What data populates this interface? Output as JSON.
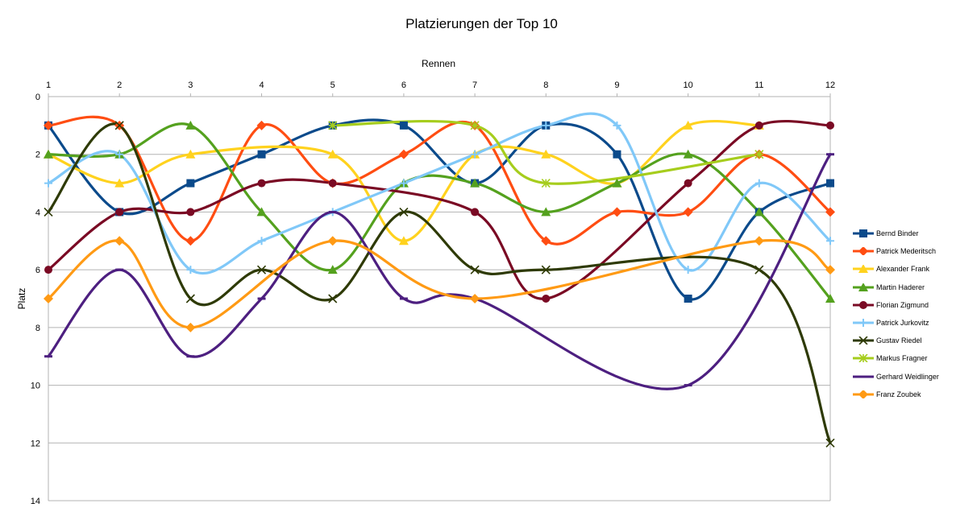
{
  "chart_data": {
    "type": "line",
    "title": "Platzierungen der Top 10",
    "xlabel": "Rennen",
    "ylabel": "Platz",
    "x": [
      1,
      2,
      3,
      4,
      5,
      6,
      7,
      8,
      9,
      10,
      11,
      12
    ],
    "x_ticks": [
      "1",
      "2",
      "3",
      "4",
      "5",
      "6",
      "7",
      "8",
      "9",
      "10",
      "11",
      "12"
    ],
    "y_ticks": [
      "0",
      "2",
      "4",
      "6",
      "8",
      "10",
      "12",
      "14"
    ],
    "ylim": [
      0,
      14
    ],
    "y_reversed": true,
    "x_axis_position": "top",
    "grid": true,
    "smoothed": true,
    "legend_position": "right",
    "series": [
      {
        "name": "Bernd Binder",
        "color": "#0b4a8b",
        "marker": "square",
        "values": [
          1,
          4,
          3,
          2,
          1,
          1,
          3,
          1,
          2,
          7,
          4,
          3
        ]
      },
      {
        "name": "Patrick Mederitsch",
        "color": "#ff4d12",
        "marker": "diamond",
        "values": [
          1,
          1,
          5,
          1,
          3,
          2,
          1,
          5,
          4,
          4,
          2,
          4
        ]
      },
      {
        "name": "Alexander Frank",
        "color": "#ffd21e",
        "marker": "triangle",
        "values": [
          2,
          3,
          2,
          null,
          2,
          5,
          2,
          2,
          3,
          1,
          1,
          null
        ]
      },
      {
        "name": "Martin Haderer",
        "color": "#54a11e",
        "marker": "triangle",
        "values": [
          2,
          2,
          1,
          4,
          6,
          3,
          3,
          4,
          3,
          2,
          4,
          7
        ]
      },
      {
        "name": "Florian Zigmund",
        "color": "#7a0a24",
        "marker": "circle",
        "values": [
          6,
          4,
          4,
          3,
          3,
          null,
          4,
          7,
          null,
          3,
          1,
          1
        ]
      },
      {
        "name": "Patrick Jurkovitz",
        "color": "#80c8f8",
        "marker": "plus",
        "values": [
          3,
          2,
          6,
          5,
          4,
          3,
          2,
          1,
          1,
          6,
          3,
          5
        ]
      },
      {
        "name": "Gustav Riedel",
        "color": "#2e3a06",
        "marker": "x",
        "values": [
          4,
          1,
          7,
          6,
          7,
          4,
          6,
          6,
          null,
          null,
          6,
          12
        ]
      },
      {
        "name": "Markus Fragner",
        "color": "#a6cd1d",
        "marker": "star",
        "values": [
          null,
          null,
          null,
          null,
          1,
          null,
          1,
          3,
          null,
          null,
          2,
          null
        ]
      },
      {
        "name": "Gerhard Weidlinger",
        "color": "#4d1f80",
        "marker": "dash",
        "values": [
          9,
          6,
          9,
          7,
          4,
          7,
          7,
          null,
          null,
          10,
          null,
          2
        ]
      },
      {
        "name": "Franz Zoubek",
        "color": "#ff9a14",
        "marker": "diamond",
        "values": [
          7,
          5,
          8,
          null,
          5,
          null,
          7,
          null,
          null,
          null,
          5,
          6
        ]
      }
    ]
  }
}
